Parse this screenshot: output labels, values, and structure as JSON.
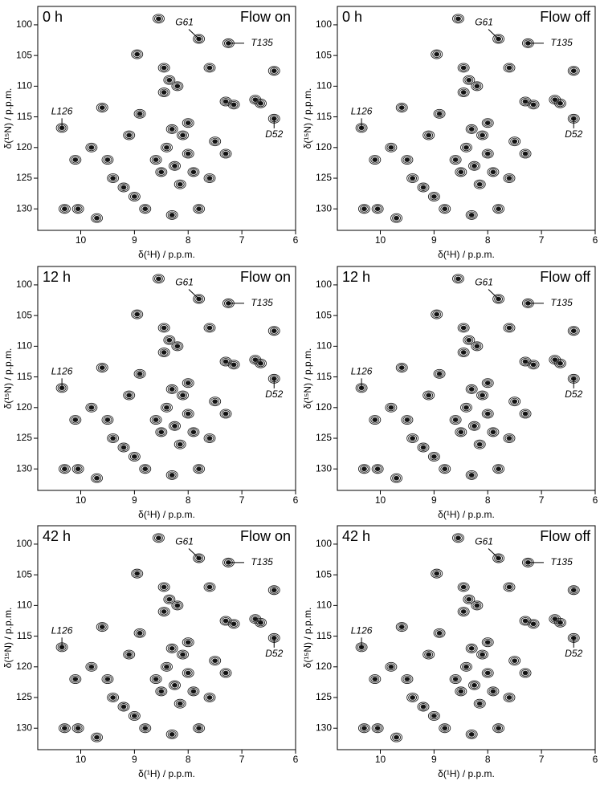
{
  "chart_data": [
    {
      "type": "scatter",
      "title": "0 h",
      "condition": "Flow on",
      "x_label": "δ(¹H) / p.p.m.",
      "y_label": "δ(¹⁵N) / p.p.m.",
      "xlim": [
        10.8,
        6
      ],
      "ylim": [
        133.5,
        97
      ],
      "xticks": [
        10,
        9,
        8,
        7,
        6
      ],
      "yticks": [
        100,
        105,
        110,
        115,
        120,
        125,
        130
      ],
      "x": [
        8.45,
        8.35,
        8.2,
        8.45,
        7.3,
        7.15,
        6.75,
        6.65,
        8.3,
        8.1,
        8.4,
        8.0,
        8.25,
        8.5,
        7.9,
        8.15,
        8.6,
        8.0,
        10.05,
        10.3,
        9.7,
        9.2,
        9.0,
        8.8,
        9.5,
        9.4,
        9.8,
        7.5,
        7.3,
        7.6,
        7.8,
        8.3,
        8.95,
        8.55,
        7.8,
        7.25,
        6.4,
        10.35,
        9.1,
        9.6,
        8.9,
        7.6,
        6.4,
        10.1
      ],
      "y": [
        107,
        109,
        110,
        111,
        112.5,
        113,
        112.2,
        112.8,
        117,
        118,
        120,
        121,
        123,
        124,
        124,
        126,
        122,
        116,
        130,
        130,
        131.5,
        126.5,
        128,
        130,
        122,
        125,
        120,
        119,
        121,
        125,
        130,
        131,
        104.8,
        99,
        102.3,
        103,
        115.3,
        116.8,
        118,
        113.5,
        114.5,
        107,
        107.5,
        122
      ],
      "annotations": [
        {
          "text": "G61",
          "x": 7.8,
          "y": 102.3
        },
        {
          "text": "T135",
          "x": 7.25,
          "y": 103
        },
        {
          "text": "L126",
          "x": 10.35,
          "y": 116.8
        },
        {
          "text": "D52",
          "x": 6.4,
          "y": 115.3
        }
      ]
    },
    {
      "type": "scatter",
      "title": "0 h",
      "condition": "Flow off",
      "x_label": "δ(¹H) / p.p.m.",
      "y_label": "δ(¹⁵N) / p.p.m.",
      "xlim": [
        10.8,
        6
      ],
      "ylim": [
        133.5,
        97
      ],
      "xticks": [
        10,
        9,
        8,
        7,
        6
      ],
      "yticks": [
        100,
        105,
        110,
        115,
        120,
        125,
        130
      ],
      "x": [
        8.45,
        8.35,
        8.2,
        8.45,
        7.3,
        7.15,
        6.75,
        6.65,
        8.3,
        8.1,
        8.4,
        8.0,
        8.25,
        8.5,
        7.9,
        8.15,
        8.6,
        8.0,
        10.05,
        10.3,
        9.7,
        9.2,
        9.0,
        8.8,
        9.5,
        9.4,
        9.8,
        7.5,
        7.3,
        7.6,
        7.8,
        8.3,
        8.95,
        8.55,
        7.8,
        7.25,
        6.4,
        10.35,
        9.1,
        9.6,
        8.9,
        7.6,
        6.4,
        10.1
      ],
      "y": [
        107,
        109,
        110,
        111,
        112.5,
        113,
        112.2,
        112.8,
        117,
        118,
        120,
        121,
        123,
        124,
        124,
        126,
        122,
        116,
        130,
        130,
        131.5,
        126.5,
        128,
        130,
        122,
        125,
        120,
        119,
        121,
        125,
        130,
        131,
        104.8,
        99,
        102.3,
        103,
        115.3,
        116.8,
        118,
        113.5,
        114.5,
        107,
        107.5,
        122
      ],
      "annotations": [
        {
          "text": "G61",
          "x": 7.8,
          "y": 102.3
        },
        {
          "text": "T135",
          "x": 7.25,
          "y": 103
        },
        {
          "text": "L126",
          "x": 10.35,
          "y": 116.8
        },
        {
          "text": "D52",
          "x": 6.4,
          "y": 115.3
        }
      ]
    },
    {
      "type": "scatter",
      "title": "12 h",
      "condition": "Flow on",
      "x_label": "δ(¹H) / p.p.m.",
      "y_label": "δ(¹⁵N) / p.p.m.",
      "xlim": [
        10.8,
        6
      ],
      "ylim": [
        133.5,
        97
      ],
      "xticks": [
        10,
        9,
        8,
        7,
        6
      ],
      "yticks": [
        100,
        105,
        110,
        115,
        120,
        125,
        130
      ],
      "x": [
        8.45,
        8.35,
        8.2,
        8.45,
        7.3,
        7.15,
        6.75,
        6.65,
        8.3,
        8.1,
        8.4,
        8.0,
        8.25,
        8.5,
        7.9,
        8.15,
        8.6,
        8.0,
        10.05,
        10.3,
        9.7,
        9.2,
        9.0,
        8.8,
        9.5,
        9.4,
        9.8,
        7.5,
        7.3,
        7.6,
        7.8,
        8.3,
        8.95,
        8.55,
        7.8,
        7.25,
        6.4,
        10.35,
        9.1,
        9.6,
        8.9,
        7.6,
        6.4,
        10.1
      ],
      "y": [
        107,
        109,
        110,
        111,
        112.5,
        113,
        112.2,
        112.8,
        117,
        118,
        120,
        121,
        123,
        124,
        124,
        126,
        122,
        116,
        130,
        130,
        131.5,
        126.5,
        128,
        130,
        122,
        125,
        120,
        119,
        121,
        125,
        130,
        131,
        104.8,
        99,
        102.3,
        103,
        115.3,
        116.8,
        118,
        113.5,
        114.5,
        107,
        107.5,
        122
      ],
      "annotations": [
        {
          "text": "G61",
          "x": 7.8,
          "y": 102.3
        },
        {
          "text": "T135",
          "x": 7.25,
          "y": 103
        },
        {
          "text": "L126",
          "x": 10.35,
          "y": 116.8
        },
        {
          "text": "D52",
          "x": 6.4,
          "y": 115.3
        }
      ]
    },
    {
      "type": "scatter",
      "title": "12 h",
      "condition": "Flow off",
      "x_label": "δ(¹H) / p.p.m.",
      "y_label": "δ(¹⁵N) / p.p.m.",
      "xlim": [
        10.8,
        6
      ],
      "ylim": [
        133.5,
        97
      ],
      "xticks": [
        10,
        9,
        8,
        7,
        6
      ],
      "yticks": [
        100,
        105,
        110,
        115,
        120,
        125,
        130
      ],
      "x": [
        8.45,
        8.35,
        8.2,
        8.45,
        7.3,
        7.15,
        6.75,
        6.65,
        8.3,
        8.1,
        8.4,
        8.0,
        8.25,
        8.5,
        7.9,
        8.15,
        8.6,
        8.0,
        10.05,
        10.3,
        9.7,
        9.2,
        9.0,
        8.8,
        9.5,
        9.4,
        9.8,
        7.5,
        7.3,
        7.6,
        7.8,
        8.3,
        8.95,
        8.55,
        7.8,
        7.25,
        6.4,
        10.35,
        9.1,
        9.6,
        8.9,
        7.6,
        6.4,
        10.1
      ],
      "y": [
        107,
        109,
        110,
        111,
        112.5,
        113,
        112.2,
        112.8,
        117,
        118,
        120,
        121,
        123,
        124,
        124,
        126,
        122,
        116,
        130,
        130,
        131.5,
        126.5,
        128,
        130,
        122,
        125,
        120,
        119,
        121,
        125,
        130,
        131,
        104.8,
        99,
        102.3,
        103,
        115.3,
        116.8,
        118,
        113.5,
        114.5,
        107,
        107.5,
        122
      ],
      "annotations": [
        {
          "text": "G61",
          "x": 7.8,
          "y": 102.3
        },
        {
          "text": "T135",
          "x": 7.25,
          "y": 103
        },
        {
          "text": "L126",
          "x": 10.35,
          "y": 116.8
        },
        {
          "text": "D52",
          "x": 6.4,
          "y": 115.3
        }
      ]
    },
    {
      "type": "scatter",
      "title": "42 h",
      "condition": "Flow on",
      "x_label": "δ(¹H) / p.p.m.",
      "y_label": "δ(¹⁵N) / p.p.m.",
      "xlim": [
        10.8,
        6
      ],
      "ylim": [
        133.5,
        97
      ],
      "xticks": [
        10,
        9,
        8,
        7,
        6
      ],
      "yticks": [
        100,
        105,
        110,
        115,
        120,
        125,
        130
      ],
      "x": [
        8.45,
        8.35,
        8.2,
        8.45,
        7.3,
        7.15,
        6.75,
        6.65,
        8.3,
        8.1,
        8.4,
        8.0,
        8.25,
        8.5,
        7.9,
        8.15,
        8.6,
        8.0,
        10.05,
        10.3,
        9.7,
        9.2,
        9.0,
        8.8,
        9.5,
        9.4,
        9.8,
        7.5,
        7.3,
        7.6,
        7.8,
        8.3,
        8.95,
        8.55,
        7.8,
        7.25,
        6.4,
        10.35,
        9.1,
        9.6,
        8.9,
        7.6,
        6.4,
        10.1
      ],
      "y": [
        107,
        109,
        110,
        111,
        112.5,
        113,
        112.2,
        112.8,
        117,
        118,
        120,
        121,
        123,
        124,
        124,
        126,
        122,
        116,
        130,
        130,
        131.5,
        126.5,
        128,
        130,
        122,
        125,
        120,
        119,
        121,
        125,
        130,
        131,
        104.8,
        99,
        102.3,
        103,
        115.3,
        116.8,
        118,
        113.5,
        114.5,
        107,
        107.5,
        122
      ],
      "annotations": [
        {
          "text": "G61",
          "x": 7.8,
          "y": 102.3
        },
        {
          "text": "T135",
          "x": 7.25,
          "y": 103
        },
        {
          "text": "L126",
          "x": 10.35,
          "y": 116.8
        },
        {
          "text": "D52",
          "x": 6.4,
          "y": 115.3
        }
      ]
    },
    {
      "type": "scatter",
      "title": "42 h",
      "condition": "Flow off",
      "x_label": "δ(¹H) / p.p.m.",
      "y_label": "δ(¹⁵N) / p.p.m.",
      "xlim": [
        10.8,
        6
      ],
      "ylim": [
        133.5,
        97
      ],
      "xticks": [
        10,
        9,
        8,
        7,
        6
      ],
      "yticks": [
        100,
        105,
        110,
        115,
        120,
        125,
        130
      ],
      "x": [
        8.45,
        8.35,
        8.2,
        8.45,
        7.3,
        7.15,
        6.75,
        6.65,
        8.3,
        8.1,
        8.4,
        8.0,
        8.25,
        8.5,
        7.9,
        8.15,
        8.6,
        8.0,
        10.05,
        10.3,
        9.7,
        9.2,
        9.0,
        8.8,
        9.5,
        9.4,
        9.8,
        7.5,
        7.3,
        7.6,
        7.8,
        8.3,
        8.95,
        8.55,
        7.8,
        7.25,
        6.4,
        10.35,
        9.1,
        9.6,
        8.9,
        7.6,
        6.4,
        10.1
      ],
      "y": [
        107,
        109,
        110,
        111,
        112.5,
        113,
        112.2,
        112.8,
        117,
        118,
        120,
        121,
        123,
        124,
        124,
        126,
        122,
        116,
        130,
        130,
        131.5,
        126.5,
        128,
        130,
        122,
        125,
        120,
        119,
        121,
        125,
        130,
        131,
        104.8,
        99,
        102.3,
        103,
        115.3,
        116.8,
        118,
        113.5,
        114.5,
        107,
        107.5,
        122
      ],
      "annotations": [
        {
          "text": "G61",
          "x": 7.8,
          "y": 102.3
        },
        {
          "text": "T135",
          "x": 7.25,
          "y": 103
        },
        {
          "text": "L126",
          "x": 10.35,
          "y": 116.8
        },
        {
          "text": "D52",
          "x": 6.4,
          "y": 115.3
        }
      ]
    }
  ]
}
